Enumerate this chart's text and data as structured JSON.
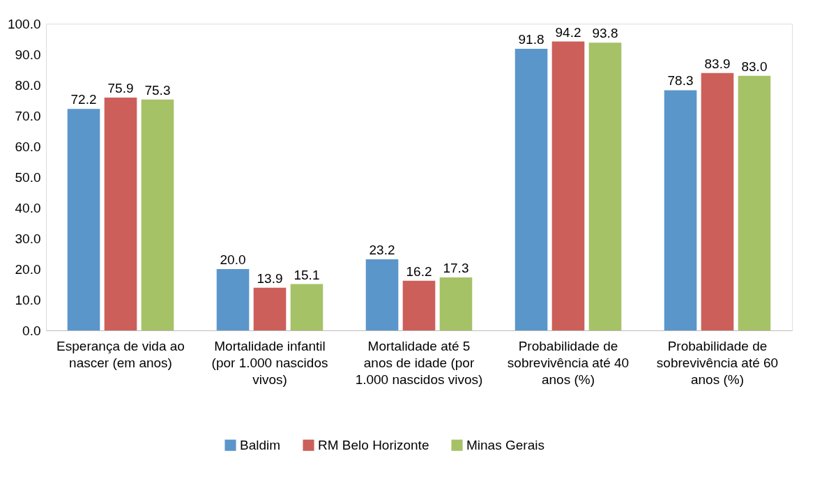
{
  "chart_data": {
    "type": "bar",
    "categories": [
      "Esperança de vida ao nascer (em anos)",
      "Mortalidade infantil (por 1.000 nascidos vivos)",
      "Mortalidade até 5 anos de idade (por 1.000 nascidos vivos)",
      "Probabilidade de sobrevivência até 40 anos (%)",
      "Probabilidade de sobrevivência até 60 anos (%)"
    ],
    "series": [
      {
        "name": "Baldim",
        "color": "#5b96cb",
        "values": [
          72.2,
          20.0,
          23.2,
          91.8,
          78.3
        ],
        "value_labels": [
          "72.2",
          "20.0",
          "23.2",
          "91.8",
          "78.3"
        ]
      },
      {
        "name": "RM Belo Horizonte",
        "color": "#cd5f5a",
        "values": [
          75.9,
          13.9,
          16.2,
          94.2,
          83.9
        ],
        "value_labels": [
          "75.9",
          "13.9",
          "16.2",
          "94.2",
          "83.9"
        ]
      },
      {
        "name": "Minas Gerais",
        "color": "#a5c266",
        "values": [
          75.3,
          15.1,
          17.3,
          93.8,
          83.0
        ],
        "value_labels": [
          "75.3",
          "15.1",
          "17.3",
          "93.8",
          "83.0"
        ]
      }
    ],
    "ylim": [
      0,
      100
    ],
    "yticks": [
      {
        "value": 0,
        "label": "0.0"
      },
      {
        "value": 10,
        "label": "10.0"
      },
      {
        "value": 20,
        "label": "20.0"
      },
      {
        "value": 30,
        "label": "30.0"
      },
      {
        "value": 40,
        "label": "40.0"
      },
      {
        "value": 50,
        "label": "50.0"
      },
      {
        "value": 60,
        "label": "60.0"
      },
      {
        "value": 70,
        "label": "70.0"
      },
      {
        "value": 80,
        "label": "80.0"
      },
      {
        "value": 90,
        "label": "90.0"
      },
      {
        "value": 100,
        "label": "100.0"
      }
    ],
    "grid": false,
    "legend": "bottom"
  }
}
